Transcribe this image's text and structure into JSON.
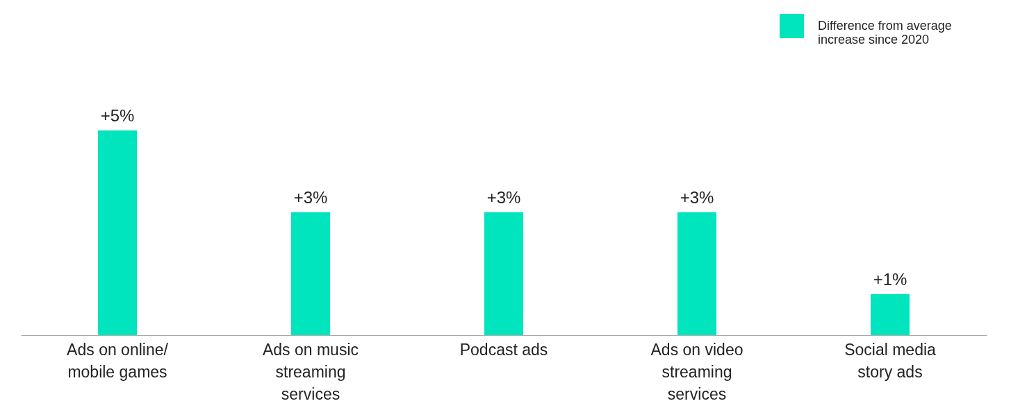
{
  "chart_data": {
    "type": "bar",
    "categories": [
      "Ads on online/ mobile games",
      "Ads on music streaming services",
      "Podcast ads",
      "Ads on video streaming services",
      "Social media story ads"
    ],
    "series": [
      {
        "name": "Difference from average increase since 2020",
        "color": "#00e5bd",
        "values": [
          5,
          3,
          3,
          3,
          1
        ],
        "value_labels": [
          "+5%",
          "+3%",
          "+3%",
          "+3%",
          "+1%"
        ]
      }
    ],
    "legend": "top right",
    "grid": false
  }
}
